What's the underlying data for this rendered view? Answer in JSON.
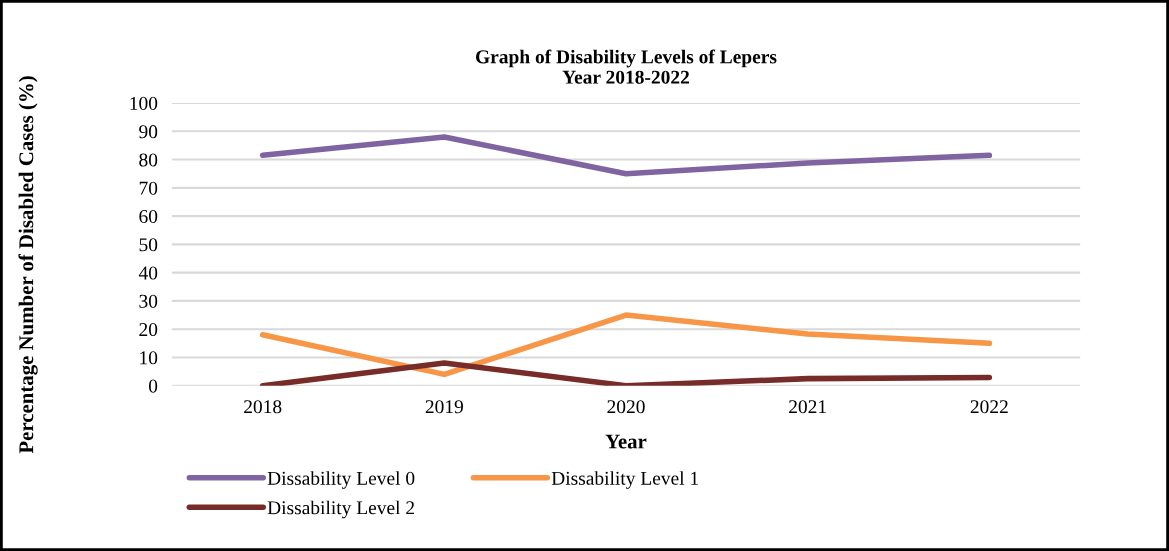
{
  "chart_data": {
    "type": "line",
    "title": "Graph of Disability Levels of Lepers\nYear 2018-2022",
    "xlabel": "Year",
    "ylabel": "Percentage Number of Disabled Cases (%)",
    "categories": [
      "2018",
      "2019",
      "2020",
      "2021",
      "2022"
    ],
    "series": [
      {
        "name": "Dissability Level 0",
        "color": "#8064a2",
        "values": [
          81.5,
          88,
          75,
          78.8,
          81.5
        ]
      },
      {
        "name": "Dissability Level 1",
        "color": "#f79646",
        "values": [
          18,
          4,
          25,
          18.3,
          15
        ]
      },
      {
        "name": "Dissability Level 2",
        "color": "#772c2a",
        "values": [
          0,
          8,
          0,
          2.5,
          2.9
        ]
      }
    ],
    "ylim": [
      0,
      100
    ],
    "yticks": [
      0,
      10,
      20,
      30,
      40,
      50,
      60,
      70,
      80,
      90,
      100
    ],
    "grid": "y",
    "legend": "bottom left",
    "marker": "none",
    "line_style": "solid"
  }
}
